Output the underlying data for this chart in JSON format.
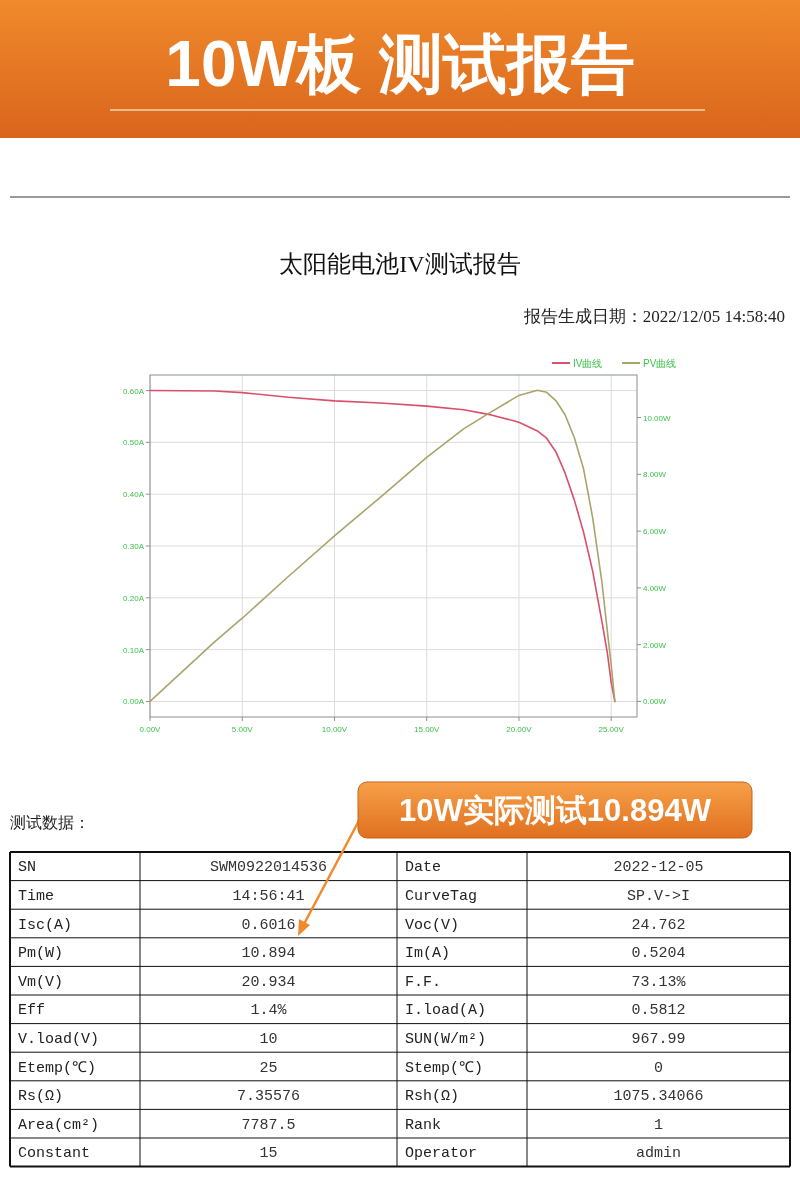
{
  "chart_data": {
    "type": "line",
    "title": "10W板 测试报告",
    "subtitle": "太阳能电池IV测试报告",
    "annotations": [
      "报告生成日期：2022/12/05 14:58:40",
      "测试数据：",
      "10W实际测试10.894W",
      "SN",
      "SWM0922014536",
      "Date",
      "2022-12-05",
      "Time",
      "14:56:41",
      "CurveTag",
      "SP.V->I",
      "Isc(A)",
      "0.6016",
      "Voc(V)",
      "24.762",
      "Pm(W)",
      "10.894",
      "Im(A)",
      "0.5204",
      "Vm(V)",
      "20.934",
      "F.F.",
      "73.13%",
      "Eff",
      "1.4%",
      "I.load(A)",
      "0.5812",
      "V.load(V)",
      "10",
      "SUN(W/m²)",
      "967.99",
      "Etemp(℃)",
      "25",
      "Stemp(℃)",
      "0",
      "Rs(Ω)",
      "7.35576",
      "Rsh(Ω)",
      "1075.34066",
      "Area(cm²)",
      "7787.5",
      "Rank",
      "1",
      "Constant",
      "15",
      "Operator",
      "admin"
    ],
    "x": [
      0,
      3.5,
      5,
      7.5,
      10,
      12.5,
      15,
      17,
      18.5,
      20,
      21,
      21.5,
      22,
      22.5,
      23,
      23.5,
      24,
      24.5,
      24.8,
      25,
      25.2
    ],
    "series": [
      {
        "name": "IV曲线",
        "color": "#d9506a",
        "values": [
          0.6,
          0.599,
          0.596,
          0.587,
          0.58,
          0.576,
          0.57,
          0.563,
          0.553,
          0.539,
          0.522,
          0.508,
          0.482,
          0.441,
          0.389,
          0.327,
          0.251,
          0.154,
          0.092,
          0.037,
          0
        ]
      },
      {
        "name": "PV曲线",
        "color": "#aaa46a",
        "axis": "y2",
        "values": [
          0,
          2.1,
          2.93,
          4.4,
          5.83,
          7.2,
          8.6,
          9.6,
          10.2,
          10.78,
          10.96,
          10.89,
          10.6,
          10.1,
          9.3,
          8.2,
          6.46,
          4.19,
          2.43,
          1.3,
          0
        ]
      }
    ],
    "xlim": [
      0,
      26.4
    ],
    "ylim": [
      -0.03,
      0.63
    ],
    "y2lim": [
      -0.55,
      11.5
    ],
    "xticks": [
      {
        "value": 0,
        "label": "0.00V"
      },
      {
        "value": 5,
        "label": "5.00V"
      },
      {
        "value": 10,
        "label": "10.00V"
      },
      {
        "value": 15,
        "label": "15.00V"
      },
      {
        "value": 20,
        "label": "20.00V"
      },
      {
        "value": 25,
        "label": "25.00V"
      }
    ],
    "yticks": [
      {
        "value": 0,
        "label": "0.00A"
      },
      {
        "value": 0.1,
        "label": "0.10A"
      },
      {
        "value": 0.2,
        "label": "0.20A"
      },
      {
        "value": 0.3,
        "label": "0.30A"
      },
      {
        "value": 0.4,
        "label": "0.40A"
      },
      {
        "value": 0.5,
        "label": "0.50A"
      },
      {
        "value": 0.6,
        "label": "0.60A"
      }
    ],
    "y2ticks": [
      {
        "value": 0,
        "label": "0.00W"
      },
      {
        "value": 2,
        "label": "2.00W"
      },
      {
        "value": 4,
        "label": "4.00W"
      },
      {
        "value": 6,
        "label": "6.00W"
      },
      {
        "value": 8,
        "label": "8.00W"
      },
      {
        "value": 10,
        "label": "10.00W"
      }
    ],
    "grid": true,
    "legend": "top right"
  }
}
